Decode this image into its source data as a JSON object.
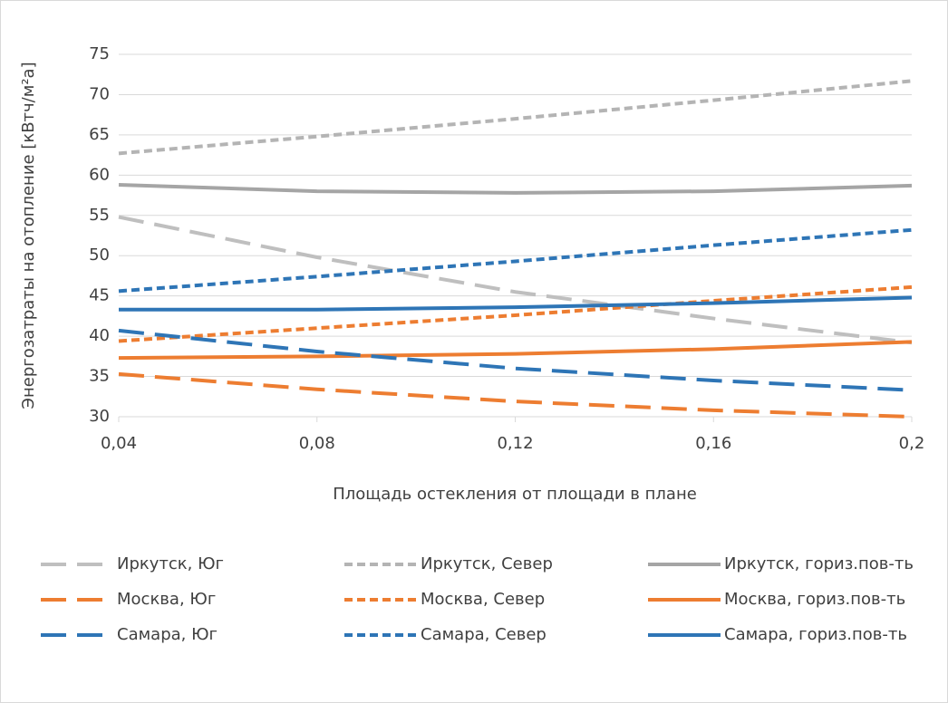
{
  "chart_data": {
    "type": "line",
    "x_label": "Площадь остекления от площади в плане",
    "y_label": "Энергозатраты на отопление [кВтч/м²а]",
    "x": [
      0.04,
      0.08,
      0.12,
      0.16,
      0.2
    ],
    "xlim": [
      0.04,
      0.2
    ],
    "xticks": [
      {
        "value": 0.04,
        "label": "0,04"
      },
      {
        "value": 0.08,
        "label": "0,08"
      },
      {
        "value": 0.12,
        "label": "0,12"
      },
      {
        "value": 0.16,
        "label": "0,16"
      },
      {
        "value": 0.2,
        "label": "0,2"
      }
    ],
    "ylim": [
      30,
      75
    ],
    "yticks": [
      30,
      35,
      40,
      45,
      50,
      55,
      60,
      65,
      70,
      75
    ],
    "grid": true,
    "legend": "bottom",
    "series": [
      {
        "name": "Иркутск, Юг",
        "color": "#bfbfbf",
        "dash": "long",
        "values": [
          54.8,
          49.8,
          45.5,
          42.2,
          39.2
        ]
      },
      {
        "name": "Иркутск, Север",
        "color": "#b4b4b4",
        "dash": "short",
        "values": [
          62.7,
          64.8,
          67.0,
          69.3,
          71.7
        ]
      },
      {
        "name": "Иркутск, гориз.пов-ть",
        "color": "#a5a5a5",
        "dash": "solid",
        "values": [
          58.8,
          58.0,
          57.8,
          58.0,
          58.7
        ]
      },
      {
        "name": "Москва, Юг",
        "color": "#ed7d31",
        "dash": "long",
        "values": [
          35.3,
          33.4,
          31.9,
          30.8,
          30.0
        ]
      },
      {
        "name": "Москва, Север",
        "color": "#ed7d31",
        "dash": "short",
        "values": [
          39.4,
          41.0,
          42.6,
          44.4,
          46.1
        ]
      },
      {
        "name": "Москва, гориз.пов-ть",
        "color": "#ed7d31",
        "dash": "solid",
        "values": [
          37.3,
          37.5,
          37.8,
          38.4,
          39.3
        ]
      },
      {
        "name": "Самара, Юг",
        "color": "#2e75b6",
        "dash": "long",
        "values": [
          40.7,
          38.1,
          36.0,
          34.5,
          33.3
        ]
      },
      {
        "name": "Самара, Север",
        "color": "#2e75b6",
        "dash": "short",
        "values": [
          45.6,
          47.4,
          49.3,
          51.3,
          53.2
        ]
      },
      {
        "name": "Самара, гориз.пов-ть",
        "color": "#2e75b6",
        "dash": "solid",
        "values": [
          43.3,
          43.3,
          43.6,
          44.1,
          44.8
        ]
      }
    ]
  }
}
